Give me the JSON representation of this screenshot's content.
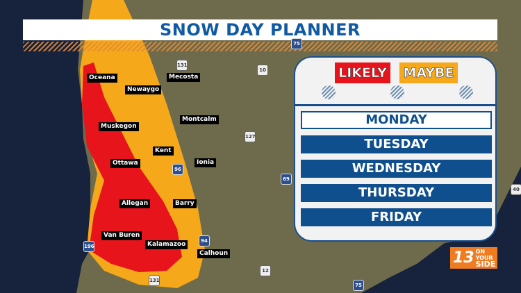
{
  "title": "SNOW DAY PLANNER",
  "legend": [
    {
      "label": "LIKELY",
      "color": "#e8141b"
    },
    {
      "label": "MAYBE",
      "color": "#f5a81a"
    }
  ],
  "days": [
    {
      "label": "MONDAY",
      "selected": true
    },
    {
      "label": "TUESDAY",
      "selected": false
    },
    {
      "label": "WEDNESDAY",
      "selected": false
    },
    {
      "label": "THURSDAY",
      "selected": false
    },
    {
      "label": "FRIDAY",
      "selected": false
    }
  ],
  "counties": [
    "Oceana",
    "Mecosta",
    "Newaygo",
    "Montcalm",
    "Muskegon",
    "Kent",
    "Ottawa",
    "Ionia",
    "Allegan",
    "Barry",
    "Van Buren",
    "Kalamazoo",
    "Calhoun"
  ],
  "highways": [
    "75",
    "131",
    "10",
    "127",
    "96",
    "69",
    "94",
    "196",
    "12",
    "131",
    "75",
    "40"
  ],
  "logo": {
    "number": "13",
    "tagline_1": "ON YOUR",
    "tagline_2": "SIDE"
  }
}
